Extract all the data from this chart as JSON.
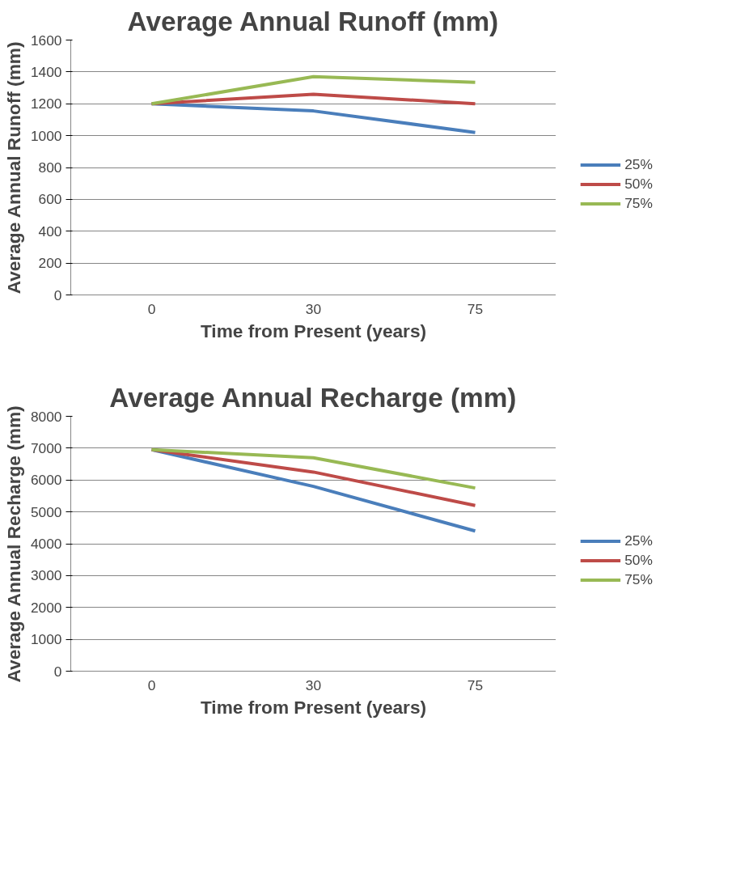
{
  "chart_data": [
    {
      "type": "line",
      "title": "Average Annual Runoff (mm)",
      "xlabel": "Time from Present (years)",
      "ylabel": "Average Annual Runoff (mm)",
      "categories": [
        "0",
        "30",
        "75"
      ],
      "ylim": [
        0,
        1600
      ],
      "yticks": [
        0,
        200,
        400,
        600,
        800,
        1000,
        1200,
        1400,
        1600
      ],
      "grid": "y",
      "legend": "right",
      "series": [
        {
          "name": "25%",
          "color": "#4a7ebb",
          "values": [
            1200,
            1155,
            1020
          ]
        },
        {
          "name": "50%",
          "color": "#be4b48",
          "values": [
            1200,
            1260,
            1200
          ]
        },
        {
          "name": "75%",
          "color": "#98b954",
          "values": [
            1200,
            1370,
            1335
          ]
        }
      ]
    },
    {
      "type": "line",
      "title": "Average Annual Recharge (mm)",
      "xlabel": "Time from Present (years)",
      "ylabel": "Average Annual Recharge (mm)",
      "categories": [
        "0",
        "30",
        "75"
      ],
      "ylim": [
        0,
        8000
      ],
      "yticks": [
        0,
        1000,
        2000,
        3000,
        4000,
        5000,
        6000,
        7000,
        8000
      ],
      "grid": "y",
      "legend": "right",
      "series": [
        {
          "name": "25%",
          "color": "#4a7ebb",
          "values": [
            6950,
            5800,
            4400
          ]
        },
        {
          "name": "50%",
          "color": "#be4b48",
          "values": [
            6950,
            6250,
            5200
          ]
        },
        {
          "name": "75%",
          "color": "#98b954",
          "values": [
            6950,
            6700,
            5750
          ]
        }
      ]
    }
  ]
}
